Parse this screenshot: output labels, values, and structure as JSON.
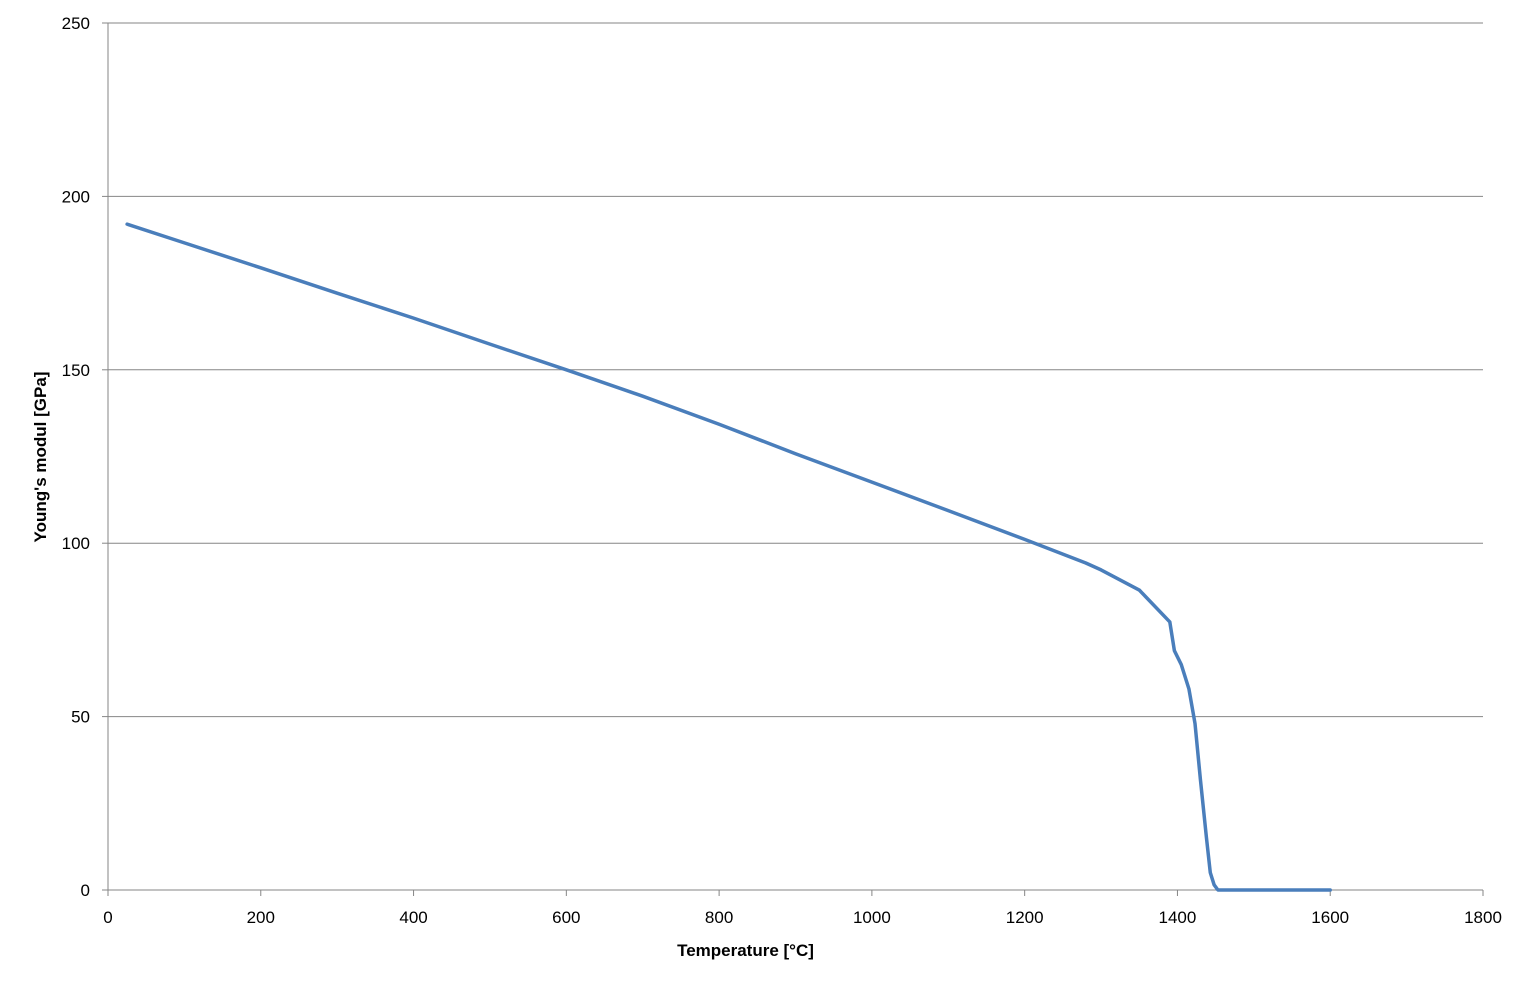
{
  "chart_data": {
    "type": "line",
    "title": "",
    "xlabel": "Temperature [°C]",
    "ylabel": "Young's modul [GPa]",
    "xlim": [
      0,
      1800
    ],
    "ylim": [
      0,
      250
    ],
    "x_ticks": [
      0,
      200,
      400,
      600,
      800,
      1000,
      1200,
      1400,
      1600,
      1800
    ],
    "y_ticks": [
      0,
      50,
      100,
      150,
      200,
      250
    ],
    "x_tick_labels": [
      "0",
      "200",
      "400",
      "600",
      "800",
      "1000",
      "1200",
      "1400",
      "1600",
      "1800"
    ],
    "y_tick_labels": [
      "0",
      "50",
      "100",
      "150",
      "200",
      "250"
    ],
    "grid": {
      "horizontal": true,
      "vertical": false
    },
    "legend": "none",
    "series": [
      {
        "color": "#4a7ebb",
        "points": [
          [
            25,
            192
          ],
          [
            100,
            186.6
          ],
          [
            200,
            179.4
          ],
          [
            300,
            172.1
          ],
          [
            400,
            164.9
          ],
          [
            500,
            157.4
          ],
          [
            600,
            150
          ],
          [
            700,
            142.4
          ],
          [
            800,
            134.3
          ],
          [
            900,
            125.8
          ],
          [
            1000,
            117.6
          ],
          [
            1100,
            109.4
          ],
          [
            1200,
            101.1
          ],
          [
            1280,
            94.3
          ],
          [
            1300,
            92.3
          ],
          [
            1350,
            86.5
          ],
          [
            1390,
            77.3
          ],
          [
            1396,
            69
          ],
          [
            1405,
            65
          ],
          [
            1415,
            58
          ],
          [
            1423,
            48
          ],
          [
            1430,
            32
          ],
          [
            1438,
            15
          ],
          [
            1443,
            5
          ],
          [
            1448,
            1.5
          ],
          [
            1453,
            0
          ],
          [
            1500,
            0
          ],
          [
            1600,
            0
          ]
        ]
      }
    ]
  }
}
